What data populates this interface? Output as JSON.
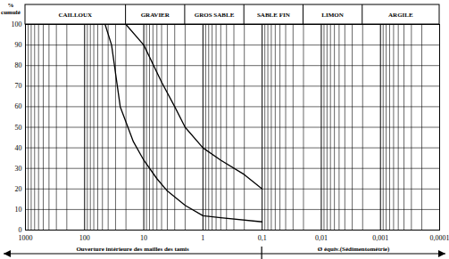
{
  "chart_data": {
    "type": "line",
    "ylabel": "% cumulé",
    "log": "x",
    "grid": true,
    "xlim": [
      1000,
      0.0001
    ],
    "xticks": [
      1000,
      100,
      10,
      1,
      {
        "value": 0.1,
        "label": "0,1"
      },
      {
        "value": 0.01,
        "label": "0,01"
      },
      {
        "value": 0.001,
        "label": "0,001"
      },
      {
        "value": 0.0001,
        "label": "0,0001"
      }
    ],
    "ylim": [
      0,
      100
    ],
    "yticks": [
      0,
      10,
      20,
      30,
      40,
      50,
      60,
      70,
      80,
      90,
      100
    ],
    "zones": [
      {
        "name": "CAILLOUX",
        "from": 1000,
        "to": 20
      },
      {
        "name": "GRAVIER",
        "from": 20,
        "to": 2
      },
      {
        "name": "GROS SABLE",
        "from": 2,
        "to": 0.2
      },
      {
        "name": "SABLE FIN",
        "from": 0.2,
        "to": 0.02
      },
      {
        "name": "LIMON",
        "from": 0.02,
        "to": 0.002
      },
      {
        "name": "ARGILE",
        "from": 0.002,
        "to": 0.0001
      }
    ],
    "sieve_limit": 0.1,
    "annotations": [
      "Ouverture intérieure des mailles des tamis",
      "Ø équiv.(Sédimentométrie)"
    ],
    "series": [
      {
        "color": "#000000",
        "x": [
          45,
          35,
          25,
          15,
          10,
          6,
          4,
          2,
          1,
          0.5,
          0.1
        ],
        "values": [
          100,
          90,
          60,
          43,
          34,
          25,
          19,
          12,
          7,
          6,
          4
        ]
      },
      {
        "color": "#000000",
        "x": [
          20,
          10,
          5,
          3,
          2,
          1,
          0.5,
          0.2,
          0.1
        ],
        "values": [
          100,
          90,
          72,
          60,
          50,
          40,
          34,
          27,
          20
        ]
      }
    ]
  }
}
